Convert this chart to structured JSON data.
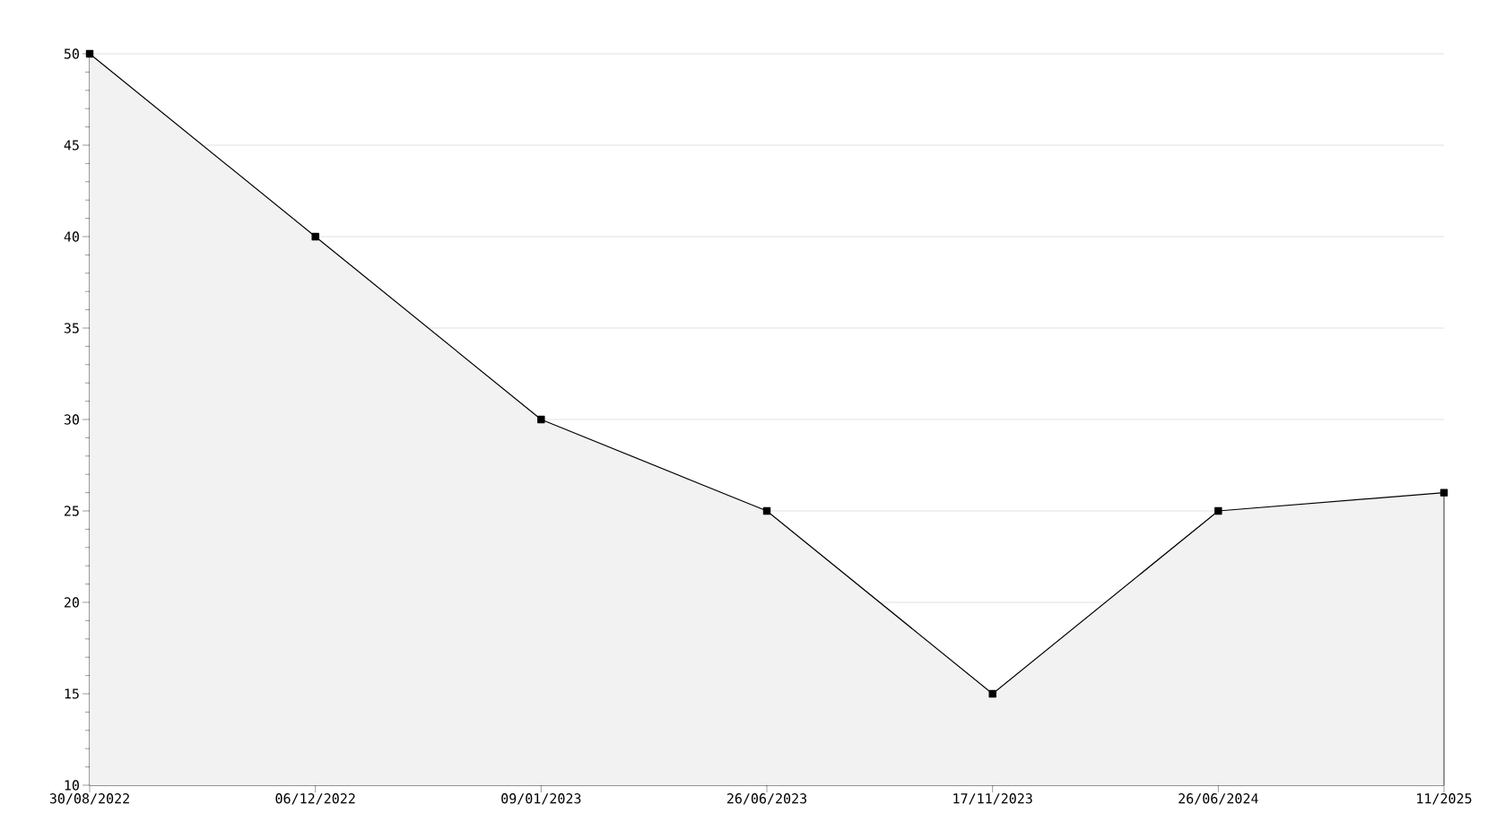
{
  "chart_data": {
    "type": "area",
    "categories": [
      "30/08/2022",
      "06/12/2022",
      "09/01/2023",
      "26/06/2023",
      "17/11/2023",
      "26/06/2024",
      "11/2025"
    ],
    "series": [
      {
        "color": "#000000",
        "values": [
          50,
          40,
          30,
          25,
          15,
          25,
          26
        ]
      }
    ],
    "ylim": [
      10,
      50
    ],
    "yticks": [
      10,
      15,
      20,
      25,
      30,
      35,
      40,
      45,
      50
    ],
    "grid": "y",
    "marker": "square",
    "line_style": "solid"
  }
}
